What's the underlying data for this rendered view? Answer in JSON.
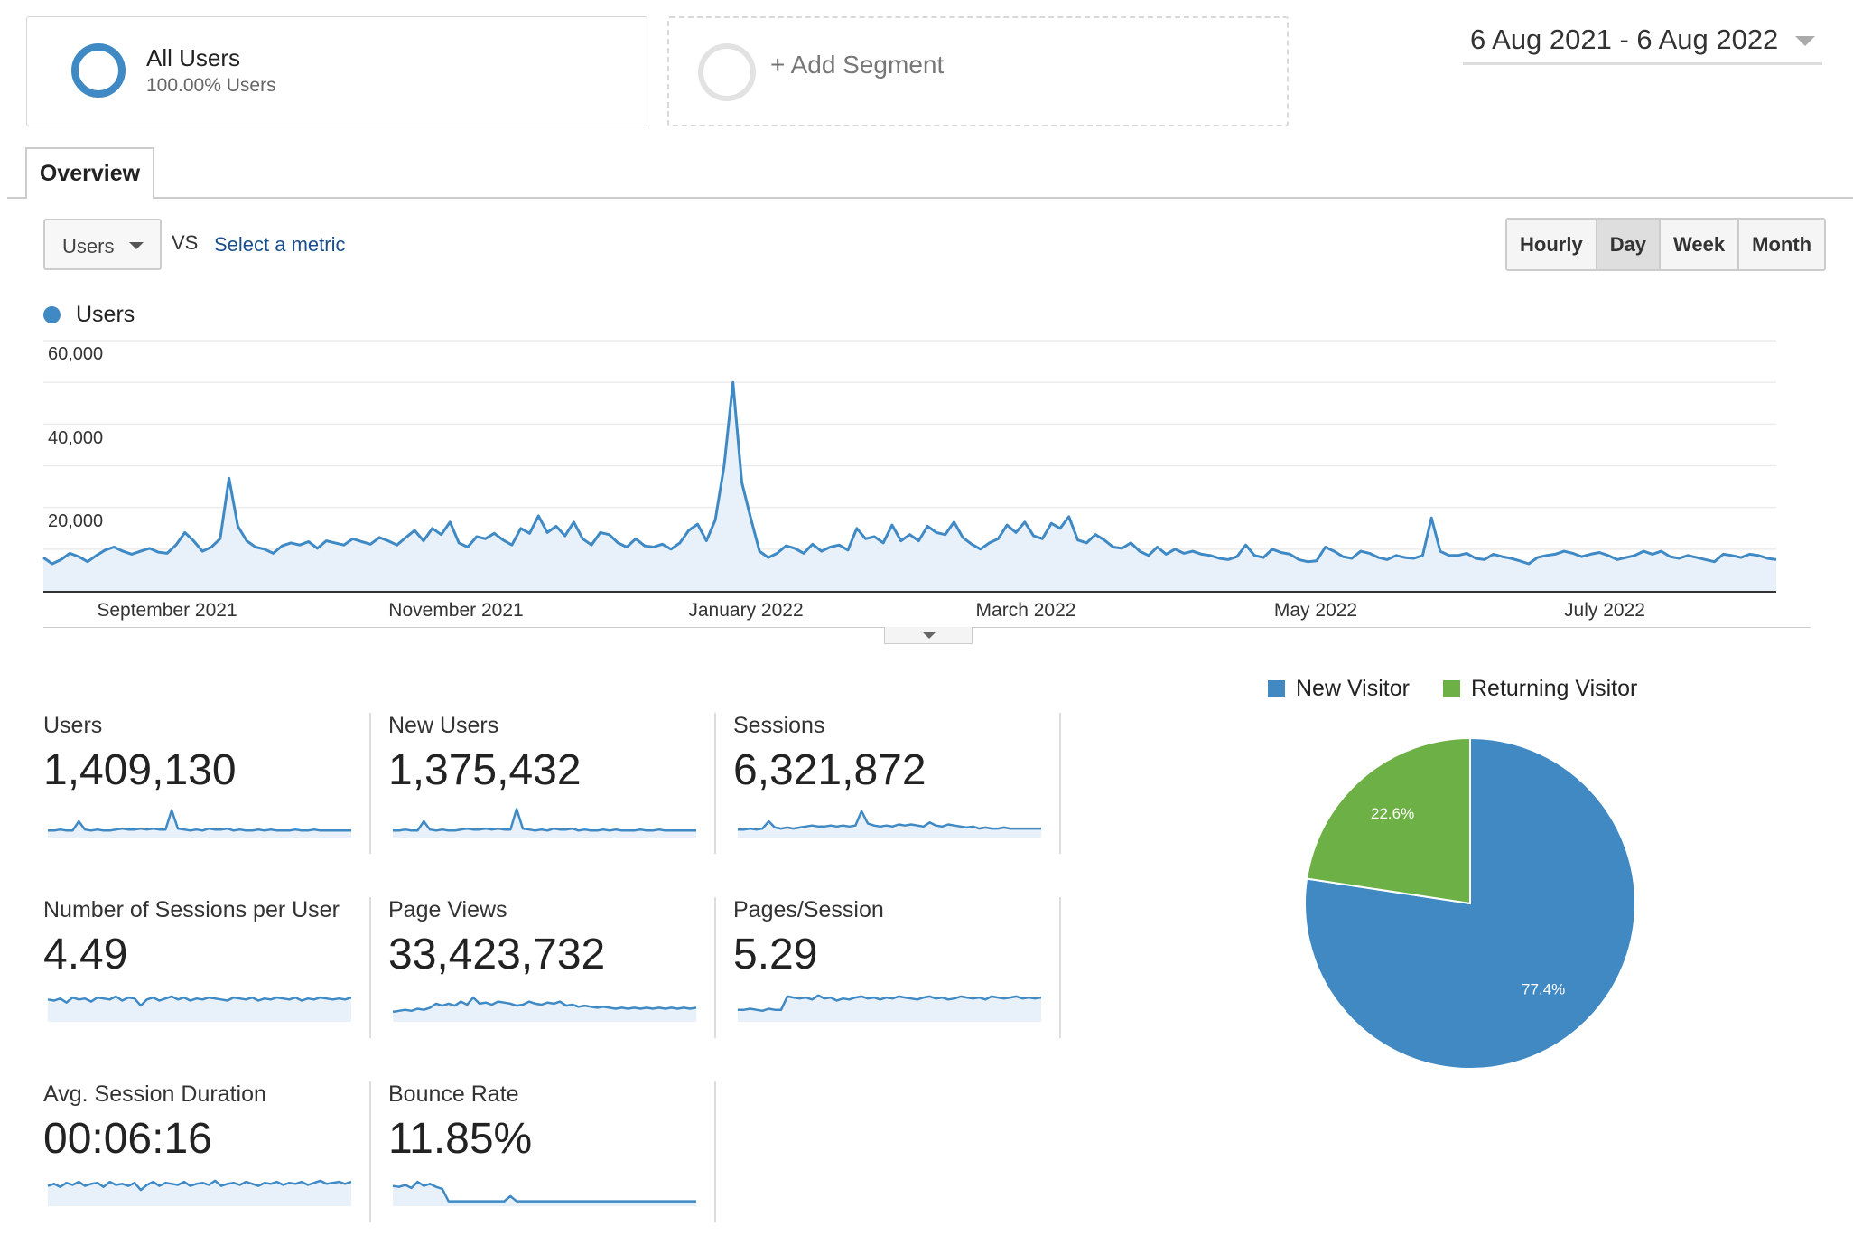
{
  "segments": {
    "all_users": {
      "title": "All Users",
      "subtitle": "100.00% Users"
    },
    "add_segment": {
      "label": "+ Add Segment"
    }
  },
  "date_range": "6 Aug 2021 - 6 Aug 2022",
  "tabs": [
    {
      "label": "Overview",
      "active": true
    }
  ],
  "toolbar": {
    "metric": "Users",
    "vs": "VS",
    "select_metric": "Select a metric",
    "intervals": [
      {
        "label": "Hourly",
        "active": false
      },
      {
        "label": "Day",
        "active": true
      },
      {
        "label": "Week",
        "active": false
      },
      {
        "label": "Month",
        "active": false
      }
    ]
  },
  "colors": {
    "accent": "#3f8ac4",
    "fill": "#e8f0f9",
    "new_visitor": "#4189c3",
    "returning_visitor": "#6db045"
  },
  "chart_data": [
    {
      "type": "line",
      "series": [
        {
          "name": "Users",
          "values": [
            8000,
            6500,
            7500,
            9000,
            8200,
            7000,
            8500,
            9800,
            10500,
            9500,
            8800,
            9500,
            10200,
            9300,
            9000,
            11000,
            14000,
            12000,
            9500,
            10500,
            12500,
            27000,
            15500,
            12000,
            10500,
            10000,
            9000,
            10800,
            11500,
            11000,
            11800,
            10200,
            12000,
            11500,
            11000,
            12500,
            11800,
            11200,
            12800,
            12000,
            11000,
            12800,
            14500,
            12000,
            15000,
            13500,
            16500,
            11500,
            10500,
            13000,
            12500,
            13800,
            12200,
            11000,
            15000,
            13800,
            18000,
            14000,
            15500,
            13200,
            16500,
            12500,
            11000,
            14000,
            13500,
            11500,
            10500,
            12500,
            10800,
            10500,
            11200,
            10000,
            11500,
            14500,
            16000,
            12000,
            17000,
            30000,
            50000,
            26000,
            17500,
            9500,
            8000,
            9000,
            10800,
            10200,
            9000,
            11200,
            9500,
            10500,
            11000,
            9800,
            15000,
            12500,
            13000,
            11500,
            15800,
            12000,
            13500,
            12000,
            15500,
            14000,
            13500,
            16500,
            12800,
            11200,
            10000,
            11500,
            12500,
            15800,
            14000,
            16500,
            13200,
            12500,
            16200,
            15000,
            17800,
            12200,
            11500,
            13500,
            12200,
            10500,
            10200,
            11500,
            9500,
            8500,
            10500,
            8800,
            10000,
            9000,
            9500,
            8800,
            8500,
            7800,
            7500,
            8200,
            11000,
            8500,
            8000,
            10000,
            9200,
            8800,
            7500,
            7000,
            7200,
            10500,
            9500,
            8200,
            7800,
            9500,
            9000,
            8000,
            7500,
            8500,
            8000,
            7800,
            8500,
            17500,
            9500,
            8500,
            8500,
            9000,
            7800,
            7500,
            8800,
            8200,
            7800,
            7200,
            6500,
            8000,
            8500,
            8800,
            9500,
            9000,
            8200,
            8800,
            9200,
            8500,
            7500,
            8000,
            8500,
            9500,
            8800,
            9500,
            8200,
            7800,
            8500,
            8000,
            7500,
            7000,
            8800,
            8500,
            8000,
            8800,
            8500,
            7800,
            7500
          ]
        }
      ],
      "x_labels": [
        "September 2021",
        "November 2021",
        "January 2022",
        "March 2022",
        "May 2022",
        "July 2022"
      ],
      "y_ticks": [
        "20,000",
        "40,000",
        "60,000"
      ],
      "ylim": [
        0,
        60000
      ]
    },
    {
      "type": "pie",
      "legend": [
        "New Visitor",
        "Returning Visitor"
      ],
      "slices": [
        {
          "name": "New Visitor",
          "value": 77.4,
          "label": "77.4%"
        },
        {
          "name": "Returning Visitor",
          "value": 22.6,
          "label": "22.6%"
        }
      ]
    }
  ],
  "kpis": [
    {
      "label": "Users",
      "value": "1,409,130",
      "spark": [
        5,
        5,
        6,
        5,
        5,
        14,
        6,
        5,
        6,
        5,
        5,
        6,
        7,
        6,
        6,
        7,
        6,
        7,
        6,
        6,
        25,
        7,
        6,
        5,
        6,
        5,
        7,
        6,
        6,
        7,
        5,
        6,
        5,
        5,
        6,
        5,
        6,
        5,
        5,
        5,
        6,
        5,
        5,
        6,
        5,
        5,
        5,
        5,
        5,
        5
      ]
    },
    {
      "label": "New Users",
      "value": "1,375,432",
      "spark": [
        5,
        5,
        6,
        5,
        5,
        14,
        6,
        5,
        6,
        5,
        5,
        6,
        7,
        6,
        6,
        7,
        6,
        7,
        6,
        6,
        26,
        7,
        6,
        5,
        6,
        5,
        7,
        6,
        6,
        7,
        5,
        6,
        5,
        5,
        6,
        5,
        6,
        5,
        5,
        5,
        6,
        5,
        5,
        6,
        5,
        5,
        5,
        5,
        5,
        5
      ]
    },
    {
      "label": "Sessions",
      "value": "6,321,872",
      "spark": [
        6,
        6,
        7,
        6,
        7,
        14,
        8,
        7,
        8,
        7,
        8,
        9,
        10,
        9,
        9,
        10,
        9,
        10,
        9,
        10,
        24,
        12,
        10,
        9,
        10,
        9,
        11,
        10,
        11,
        10,
        9,
        13,
        10,
        9,
        11,
        10,
        9,
        8,
        9,
        7,
        8,
        7,
        7,
        8,
        7,
        7,
        7,
        7,
        7,
        7
      ]
    },
    {
      "label": "Number of Sessions per User",
      "value": "4.49",
      "spark": [
        20,
        19,
        21,
        17,
        22,
        20,
        21,
        18,
        22,
        21,
        20,
        23,
        19,
        22,
        21,
        14,
        20,
        22,
        19,
        21,
        23,
        20,
        22,
        19,
        21,
        20,
        22,
        21,
        20,
        19,
        22,
        21,
        20,
        22,
        19,
        21,
        20,
        22,
        21,
        20,
        22,
        19,
        21,
        20,
        22,
        21,
        20,
        21,
        20,
        22
      ]
    },
    {
      "label": "Page Views",
      "value": "33,423,732",
      "spark": [
        8,
        9,
        10,
        9,
        11,
        10,
        12,
        16,
        14,
        16,
        14,
        18,
        15,
        22,
        16,
        17,
        15,
        18,
        17,
        16,
        14,
        15,
        18,
        16,
        15,
        17,
        16,
        18,
        14,
        15,
        13,
        14,
        13,
        12,
        13,
        12,
        11,
        12,
        11,
        12,
        11,
        12,
        11,
        12,
        11,
        12,
        11,
        12,
        11,
        12
      ]
    },
    {
      "label": "Pages/Session",
      "value": "5.29",
      "spark": [
        10,
        10,
        11,
        10,
        9,
        11,
        10,
        10,
        23,
        22,
        21,
        22,
        20,
        24,
        21,
        22,
        19,
        21,
        20,
        22,
        23,
        21,
        22,
        20,
        22,
        21,
        23,
        22,
        21,
        20,
        22,
        23,
        21,
        22,
        20,
        21,
        23,
        22,
        21,
        22,
        20,
        23,
        22,
        21,
        22,
        23,
        21,
        22,
        21,
        22
      ]
    },
    {
      "label": "Avg. Session Duration",
      "value": "00:06:16",
      "spark": [
        18,
        20,
        17,
        21,
        19,
        22,
        18,
        20,
        21,
        17,
        22,
        19,
        20,
        18,
        21,
        14,
        19,
        22,
        18,
        21,
        20,
        19,
        22,
        18,
        20,
        21,
        19,
        23,
        18,
        20,
        21,
        19,
        22,
        20,
        18,
        21,
        20,
        22,
        19,
        21,
        20,
        22,
        19,
        21,
        23,
        20,
        21,
        22,
        20,
        22
      ]
    },
    {
      "label": "Bounce Rate",
      "value": "11.85%",
      "spark": [
        18,
        17,
        19,
        16,
        22,
        18,
        20,
        17,
        15,
        3,
        3,
        3,
        3,
        3,
        3,
        3,
        3,
        3,
        3,
        8,
        3,
        3,
        3,
        3,
        3,
        3,
        3,
        3,
        3,
        3,
        3,
        3,
        3,
        3,
        3,
        3,
        3,
        3,
        3,
        3,
        3,
        3,
        3,
        3,
        3,
        3,
        3,
        3,
        3,
        3
      ]
    }
  ]
}
